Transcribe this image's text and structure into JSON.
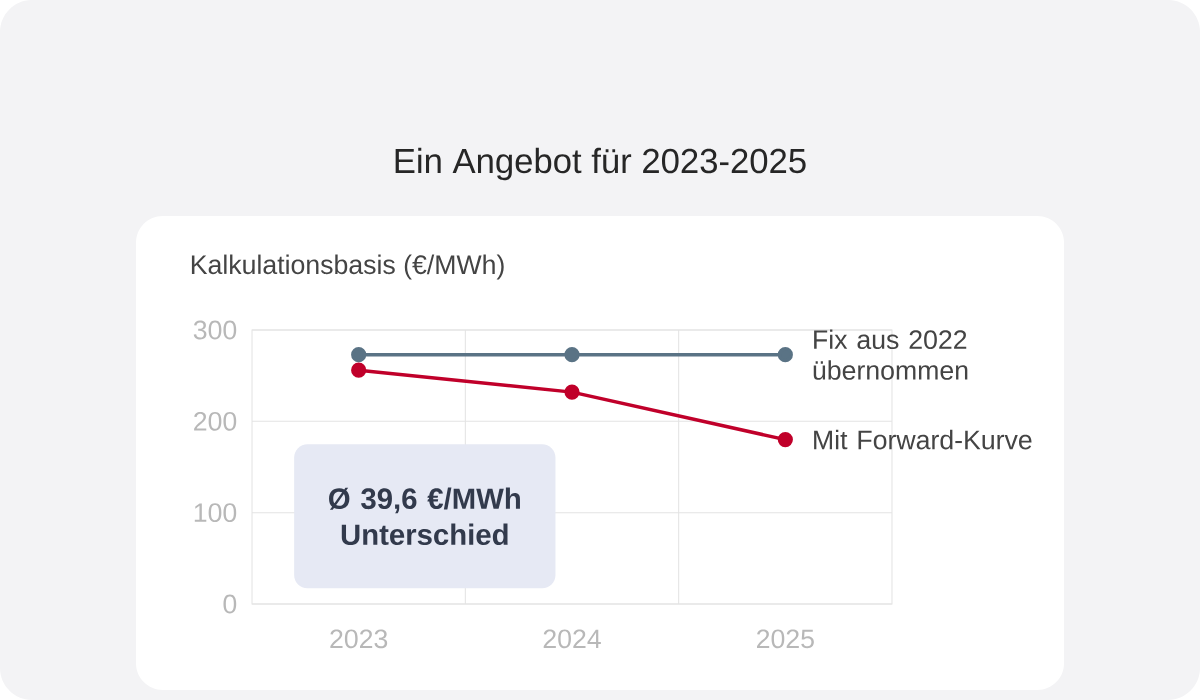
{
  "chart_data": {
    "type": "line",
    "title": "Ein Angebot für 2023-2025",
    "ylabel": "Kalkulationsbasis (€/MWh)",
    "categories": [
      "2023",
      "2024",
      "2025"
    ],
    "series": [
      {
        "name": "Fix aus 2022 übernommen",
        "color": "#5a7385",
        "values": [
          273,
          273,
          273
        ]
      },
      {
        "name": "Mit Forward-Kurve",
        "color": "#c0002a",
        "values": [
          256,
          232,
          180
        ]
      }
    ],
    "ylim": [
      0,
      300
    ],
    "yticks": [
      0,
      100,
      200,
      300
    ],
    "grid": true,
    "legend": "right",
    "marker": "circle",
    "line_style": "solid",
    "annotations": [
      "Ø 39,6 €/MWh Unterschied"
    ]
  }
}
